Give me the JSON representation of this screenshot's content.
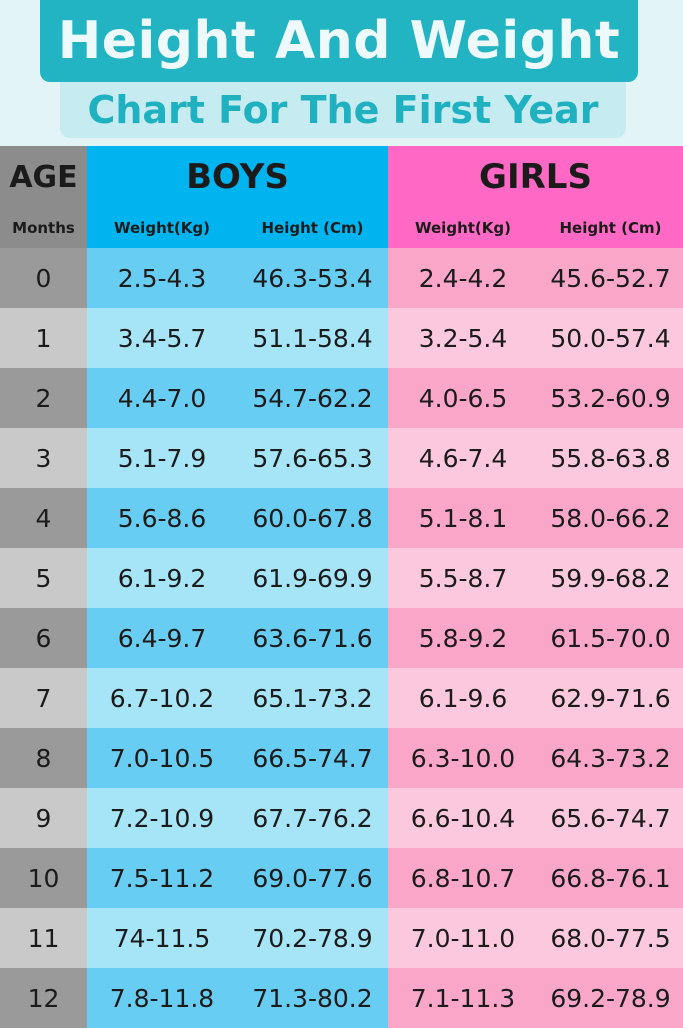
{
  "header": {
    "title": "Height And Weight",
    "subtitle": "Chart For The First Year"
  },
  "colors": {
    "title_bg": "#22b4c2",
    "boys": "#00b4f0",
    "girls": "#ff69c5",
    "age": "#8c8c8c"
  },
  "chart_data": {
    "type": "table",
    "title": "Height And Weight",
    "subtitle": "Chart For The First Year",
    "group_headers": {
      "age": "AGE",
      "boys": "BOYS",
      "girls": "GIRLS"
    },
    "columns": [
      "Months",
      "Weight(Kg)",
      "Height (Cm)",
      "Weight(Kg)",
      "Height (Cm)"
    ],
    "rows": [
      [
        "0",
        "2.5-4.3",
        "46.3-53.4",
        "2.4-4.2",
        "45.6-52.7"
      ],
      [
        "1",
        "3.4-5.7",
        "51.1-58.4",
        "3.2-5.4",
        "50.0-57.4"
      ],
      [
        "2",
        "4.4-7.0",
        "54.7-62.2",
        "4.0-6.5",
        "53.2-60.9"
      ],
      [
        "3",
        "5.1-7.9",
        "57.6-65.3",
        "4.6-7.4",
        "55.8-63.8"
      ],
      [
        "4",
        "5.6-8.6",
        "60.0-67.8",
        "5.1-8.1",
        "58.0-66.2"
      ],
      [
        "5",
        "6.1-9.2",
        "61.9-69.9",
        "5.5-8.7",
        "59.9-68.2"
      ],
      [
        "6",
        "6.4-9.7",
        "63.6-71.6",
        "5.8-9.2",
        "61.5-70.0"
      ],
      [
        "7",
        "6.7-10.2",
        "65.1-73.2",
        "6.1-9.6",
        "62.9-71.6"
      ],
      [
        "8",
        "7.0-10.5",
        "66.5-74.7",
        "6.3-10.0",
        "64.3-73.2"
      ],
      [
        "9",
        "7.2-10.9",
        "67.7-76.2",
        "6.6-10.4",
        "65.6-74.7"
      ],
      [
        "10",
        "7.5-11.2",
        "69.0-77.6",
        "6.8-10.7",
        "66.8-76.1"
      ],
      [
        "11",
        "74-11.5",
        "70.2-78.9",
        "7.0-11.0",
        "68.0-77.5"
      ],
      [
        "12",
        "7.8-11.8",
        "71.3-80.2",
        "7.1-11.3",
        "69.2-78.9"
      ]
    ]
  }
}
